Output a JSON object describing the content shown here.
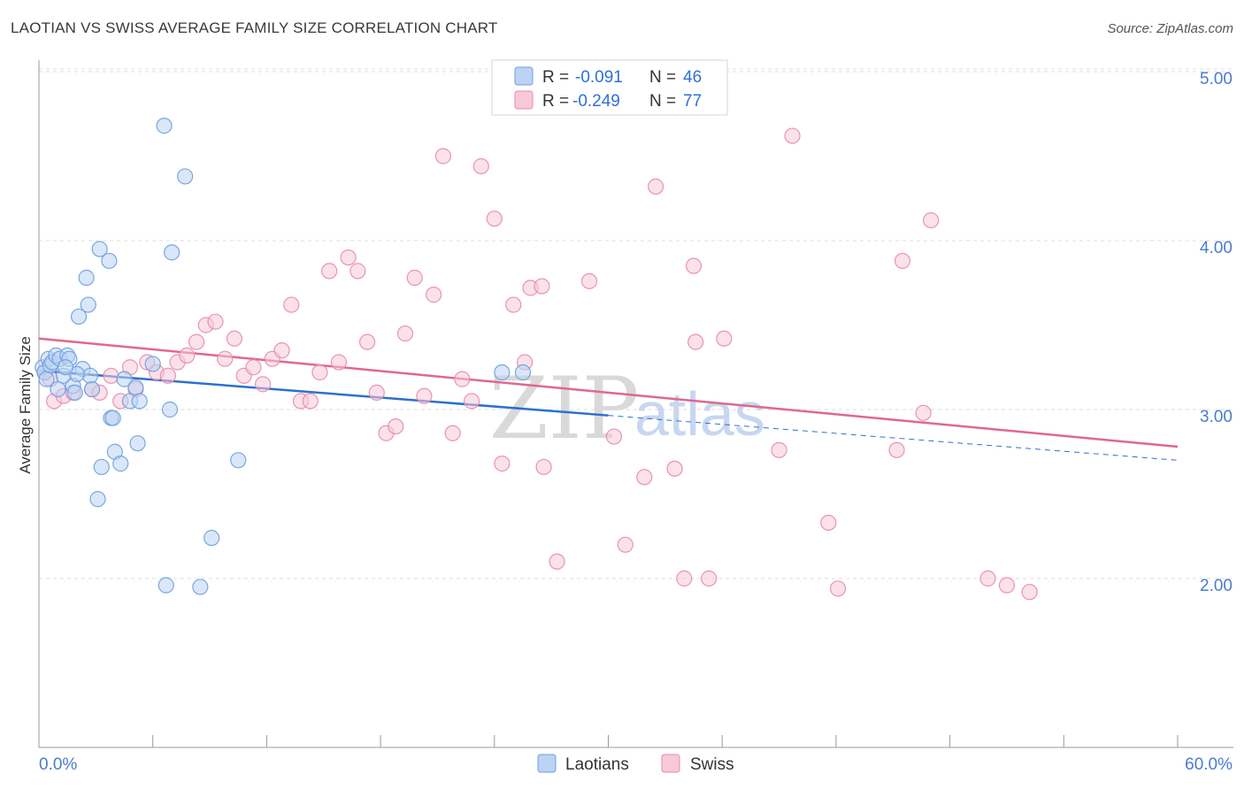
{
  "title": "LAOTIAN VS SWISS AVERAGE FAMILY SIZE CORRELATION CHART",
  "source": "Source: ZipAtlas.com",
  "watermark": {
    "zip": "ZIP",
    "atlas": "atlas"
  },
  "colors": {
    "laotians": "#6a9fe0",
    "laotians_fill": "#bcd3f3",
    "laotians_line": "#2c6fd1",
    "swiss": "#e88aa9",
    "swiss_fill": "#f7c9d8",
    "swiss_line": "#e06790",
    "tick": "#4a7bd0",
    "grid": "#dcdcdc"
  },
  "legend": {
    "rows": [
      {
        "r_label": "R =",
        "r_value": "-0.091",
        "n_label": "N =",
        "n_value": "46"
      },
      {
        "r_label": "R =",
        "r_value": "-0.249",
        "n_label": "N =",
        "n_value": "77"
      }
    ]
  },
  "bottom_legend": [
    "Laotians",
    "Swiss"
  ],
  "chart_data": {
    "type": "scatter",
    "title": "LAOTIAN VS SWISS AVERAGE FAMILY SIZE CORRELATION CHART",
    "xlabel": "",
    "ylabel": "Average Family Size",
    "xlim": [
      0,
      60
    ],
    "ylim": [
      1.0,
      5.1
    ],
    "x_tick_labels": [
      "0.0%",
      "60.0%"
    ],
    "y_ticks": [
      2.0,
      3.0,
      4.0,
      5.0
    ],
    "y_tick_labels": [
      "2.00",
      "3.00",
      "4.00",
      "5.00"
    ],
    "grid": true,
    "series": [
      {
        "name": "Laotians",
        "r": -0.091,
        "n": 46,
        "trend": {
          "x_start": 0,
          "y_start": 3.23,
          "x_end": 60,
          "y_end": 2.7,
          "solid_until_x": 30
        },
        "points": [
          [
            0.2,
            3.25
          ],
          [
            0.3,
            3.22
          ],
          [
            0.5,
            3.3
          ],
          [
            0.6,
            3.26
          ],
          [
            0.7,
            3.28
          ],
          [
            0.9,
            3.32
          ],
          [
            1.0,
            3.12
          ],
          [
            1.1,
            3.3
          ],
          [
            1.3,
            3.2
          ],
          [
            1.5,
            3.32
          ],
          [
            1.6,
            3.3
          ],
          [
            1.8,
            3.14
          ],
          [
            1.9,
            3.1
          ],
          [
            2.1,
            3.55
          ],
          [
            2.3,
            3.24
          ],
          [
            2.5,
            3.78
          ],
          [
            2.6,
            3.62
          ],
          [
            2.7,
            3.2
          ],
          [
            2.8,
            3.12
          ],
          [
            3.1,
            2.47
          ],
          [
            3.2,
            3.95
          ],
          [
            3.3,
            2.66
          ],
          [
            3.7,
            3.88
          ],
          [
            3.8,
            2.95
          ],
          [
            3.9,
            2.95
          ],
          [
            4.0,
            2.75
          ],
          [
            4.3,
            2.68
          ],
          [
            4.5,
            3.18
          ],
          [
            4.8,
            3.05
          ],
          [
            5.1,
            3.13
          ],
          [
            5.2,
            2.8
          ],
          [
            5.3,
            3.05
          ],
          [
            6.0,
            3.27
          ],
          [
            6.6,
            4.68
          ],
          [
            6.7,
            1.96
          ],
          [
            6.9,
            3.0
          ],
          [
            7.0,
            3.93
          ],
          [
            7.7,
            4.38
          ],
          [
            8.5,
            1.95
          ],
          [
            9.1,
            2.24
          ],
          [
            10.5,
            2.7
          ],
          [
            24.4,
            3.22
          ],
          [
            25.5,
            3.22
          ],
          [
            0.4,
            3.18
          ],
          [
            2.0,
            3.21
          ],
          [
            1.4,
            3.25
          ]
        ]
      },
      {
        "name": "Swiss",
        "r": -0.249,
        "n": 77,
        "trend": {
          "x_start": 0,
          "y_start": 3.42,
          "x_end": 60,
          "y_end": 2.78
        },
        "points": [
          [
            0.3,
            3.22
          ],
          [
            0.6,
            3.18
          ],
          [
            0.8,
            3.05
          ],
          [
            1.3,
            3.08
          ],
          [
            1.8,
            3.1
          ],
          [
            2.8,
            3.12
          ],
          [
            3.2,
            3.1
          ],
          [
            3.8,
            3.2
          ],
          [
            4.3,
            3.05
          ],
          [
            4.8,
            3.25
          ],
          [
            5.1,
            3.12
          ],
          [
            5.7,
            3.28
          ],
          [
            6.2,
            3.22
          ],
          [
            6.8,
            3.2
          ],
          [
            7.3,
            3.28
          ],
          [
            7.8,
            3.32
          ],
          [
            8.3,
            3.4
          ],
          [
            8.8,
            3.5
          ],
          [
            9.3,
            3.52
          ],
          [
            9.8,
            3.3
          ],
          [
            10.3,
            3.42
          ],
          [
            10.8,
            3.2
          ],
          [
            11.3,
            3.25
          ],
          [
            11.8,
            3.15
          ],
          [
            12.3,
            3.3
          ],
          [
            12.8,
            3.35
          ],
          [
            13.3,
            3.62
          ],
          [
            13.8,
            3.05
          ],
          [
            14.3,
            3.05
          ],
          [
            14.8,
            3.22
          ],
          [
            15.3,
            3.82
          ],
          [
            15.8,
            3.28
          ],
          [
            16.3,
            3.9
          ],
          [
            16.8,
            3.82
          ],
          [
            17.3,
            3.4
          ],
          [
            17.8,
            3.1
          ],
          [
            18.3,
            2.86
          ],
          [
            18.8,
            2.9
          ],
          [
            19.3,
            3.45
          ],
          [
            19.8,
            3.78
          ],
          [
            20.3,
            3.08
          ],
          [
            20.8,
            3.68
          ],
          [
            21.3,
            4.5
          ],
          [
            21.8,
            2.86
          ],
          [
            22.3,
            3.18
          ],
          [
            22.8,
            3.05
          ],
          [
            23.3,
            4.44
          ],
          [
            24.0,
            4.13
          ],
          [
            24.4,
            2.68
          ],
          [
            25.0,
            3.62
          ],
          [
            25.6,
            3.28
          ],
          [
            25.9,
            3.72
          ],
          [
            26.5,
            3.73
          ],
          [
            26.6,
            2.66
          ],
          [
            27.3,
            2.1
          ],
          [
            29.0,
            3.76
          ],
          [
            30.3,
            2.84
          ],
          [
            30.9,
            2.2
          ],
          [
            31.9,
            2.6
          ],
          [
            32.5,
            4.32
          ],
          [
            33.5,
            2.65
          ],
          [
            34.0,
            2.0
          ],
          [
            34.5,
            3.85
          ],
          [
            34.6,
            3.4
          ],
          [
            35.3,
            2.0
          ],
          [
            36.1,
            3.42
          ],
          [
            39.0,
            2.76
          ],
          [
            39.7,
            4.62
          ],
          [
            41.6,
            2.33
          ],
          [
            42.1,
            1.94
          ],
          [
            45.2,
            2.76
          ],
          [
            45.5,
            3.88
          ],
          [
            46.6,
            2.98
          ],
          [
            47.0,
            4.12
          ],
          [
            50.0,
            2.0
          ],
          [
            51.0,
            1.96
          ],
          [
            52.2,
            1.92
          ]
        ]
      }
    ]
  }
}
